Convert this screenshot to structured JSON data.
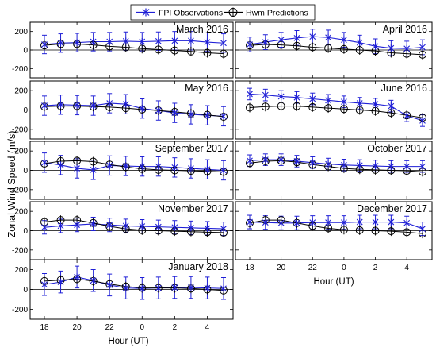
{
  "figure": {
    "ylabel": "Zonal Wind Speed (m/s)",
    "xlabel": "Hour (UT)",
    "legend": {
      "obs_label": "FPI Observations",
      "pred_label": "Hwm Predictions",
      "placement": "top-center"
    },
    "colors": {
      "observations": "#1f1fd6",
      "predictions": "#000000"
    }
  },
  "chart_data": [
    {
      "type": "line",
      "title": "March 2016",
      "x": [
        18,
        19,
        20,
        21,
        22,
        23,
        0,
        1,
        2,
        3,
        4,
        5
      ],
      "xticks": [
        "18",
        "20",
        "22",
        "0",
        "2",
        "4"
      ],
      "ylim": [
        -300,
        300
      ],
      "yticks": [
        -200,
        0,
        200
      ],
      "grid": false,
      "series": [
        {
          "name": "FPI Observations",
          "values": [
            60,
            75,
            80,
            90,
            90,
            95,
            90,
            95,
            100,
            100,
            85,
            75
          ],
          "error": [
            100,
            100,
            100,
            100,
            100,
            100,
            100,
            100,
            100,
            100,
            100,
            100
          ]
        },
        {
          "name": "Hwm Predictions",
          "values": [
            50,
            65,
            65,
            55,
            40,
            30,
            15,
            5,
            -5,
            -15,
            -30,
            -40
          ]
        }
      ]
    },
    {
      "type": "line",
      "title": "April 2016",
      "x": [
        18,
        19,
        20,
        21,
        22,
        23,
        0,
        1,
        2,
        3,
        4,
        5
      ],
      "xticks": [
        "18",
        "20",
        "22",
        "0",
        "2",
        "4"
      ],
      "ylim": [
        -300,
        300
      ],
      "yticks": [
        -200,
        0,
        200
      ],
      "grid": false,
      "series": [
        {
          "name": "FPI Observations",
          "values": [
            60,
            85,
            110,
            130,
            145,
            135,
            110,
            80,
            40,
            20,
            15,
            30
          ],
          "error": [
            80,
            80,
            80,
            80,
            80,
            80,
            80,
            80,
            80,
            80,
            80,
            80
          ]
        },
        {
          "name": "Hwm Predictions",
          "values": [
            50,
            60,
            55,
            45,
            30,
            20,
            10,
            0,
            -10,
            -30,
            -40,
            -50
          ]
        }
      ]
    },
    {
      "type": "line",
      "title": "May 2016",
      "x": [
        18,
        19,
        20,
        21,
        22,
        23,
        0,
        1,
        2,
        3,
        4,
        5
      ],
      "xticks": [
        "18",
        "20",
        "22",
        "0",
        "2",
        "4"
      ],
      "ylim": [
        -300,
        300
      ],
      "yticks": [
        -200,
        0,
        200
      ],
      "grid": false,
      "series": [
        {
          "name": "FPI Observations",
          "values": [
            45,
            55,
            50,
            45,
            70,
            60,
            15,
            -5,
            -30,
            -45,
            -55,
            -65
          ],
          "error": [
            100,
            100,
            100,
            100,
            100,
            100,
            100,
            100,
            100,
            100,
            100,
            100
          ]
        },
        {
          "name": "Hwm Predictions",
          "values": [
            35,
            40,
            40,
            35,
            30,
            20,
            5,
            -5,
            -20,
            -35,
            -50,
            -70
          ]
        }
      ]
    },
    {
      "type": "line",
      "title": "June 2016",
      "x": [
        18,
        19,
        20,
        21,
        22,
        23,
        0,
        1,
        2,
        3,
        4,
        5
      ],
      "xticks": [
        "18",
        "20",
        "22",
        "0",
        "2",
        "4"
      ],
      "ylim": [
        -300,
        300
      ],
      "yticks": [
        -200,
        0,
        200
      ],
      "grid": false,
      "series": [
        {
          "name": "FPI Observations",
          "values": [
            165,
            155,
            140,
            130,
            115,
            100,
            85,
            70,
            60,
            40,
            -60,
            -110
          ],
          "error": [
            60,
            60,
            60,
            60,
            60,
            60,
            60,
            60,
            60,
            60,
            60,
            60
          ]
        },
        {
          "name": "Hwm Predictions",
          "values": [
            25,
            35,
            40,
            40,
            30,
            20,
            10,
            0,
            -10,
            -30,
            -55,
            -80
          ]
        }
      ]
    },
    {
      "type": "line",
      "title": "September 2017",
      "x": [
        18,
        19,
        20,
        21,
        22,
        23,
        0,
        1,
        2,
        3,
        4,
        5
      ],
      "xticks": [
        "18",
        "20",
        "22",
        "0",
        "2",
        "4"
      ],
      "ylim": [
        -300,
        300
      ],
      "yticks": [
        -200,
        0,
        200
      ],
      "grid": false,
      "series": [
        {
          "name": "FPI Observations",
          "values": [
            80,
            55,
            20,
            5,
            50,
            45,
            40,
            40,
            30,
            20,
            10,
            0
          ],
          "error": [
            100,
            100,
            100,
            100,
            100,
            100,
            100,
            100,
            100,
            100,
            100,
            100
          ]
        },
        {
          "name": "Hwm Predictions",
          "values": [
            70,
            95,
            100,
            90,
            60,
            35,
            15,
            5,
            0,
            -5,
            -10,
            -15
          ]
        }
      ]
    },
    {
      "type": "line",
      "title": "October 2017",
      "x": [
        18,
        19,
        20,
        21,
        22,
        23,
        0,
        1,
        2,
        3,
        4,
        5
      ],
      "xticks": [
        "18",
        "20",
        "22",
        "0",
        "2",
        "4"
      ],
      "ylim": [
        -300,
        300
      ],
      "yticks": [
        -200,
        0,
        200
      ],
      "grid": false,
      "series": [
        {
          "name": "FPI Observations",
          "values": [
            100,
            110,
            110,
            95,
            80,
            65,
            55,
            50,
            45,
            40,
            40,
            40
          ],
          "error": [
            60,
            60,
            60,
            60,
            60,
            60,
            60,
            60,
            60,
            60,
            60,
            60
          ]
        },
        {
          "name": "Hwm Predictions",
          "values": [
            75,
            95,
            100,
            85,
            60,
            40,
            20,
            10,
            5,
            0,
            -5,
            -15
          ]
        }
      ]
    },
    {
      "type": "line",
      "title": "November 2017",
      "x": [
        18,
        19,
        20,
        21,
        22,
        23,
        0,
        1,
        2,
        3,
        4,
        5
      ],
      "xticks": [
        "18",
        "20",
        "22",
        "0",
        "2",
        "4"
      ],
      "ylim": [
        -300,
        300
      ],
      "yticks": [
        -200,
        0,
        200
      ],
      "grid": false,
      "series": [
        {
          "name": "FPI Observations",
          "values": [
            35,
            50,
            60,
            70,
            60,
            50,
            45,
            40,
            35,
            30,
            25,
            20
          ],
          "error": [
            70,
            70,
            70,
            70,
            70,
            70,
            70,
            70,
            70,
            70,
            70,
            70
          ]
        },
        {
          "name": "Hwm Predictions",
          "values": [
            90,
            110,
            110,
            80,
            45,
            20,
            5,
            0,
            -5,
            -10,
            -15,
            -20
          ]
        }
      ]
    },
    {
      "type": "line",
      "title": "December 2017",
      "x": [
        18,
        19,
        20,
        21,
        22,
        23,
        0,
        1,
        2,
        3,
        4,
        5
      ],
      "xticks": [
        "18",
        "20",
        "22",
        "0",
        "2",
        "4"
      ],
      "ylim": [
        -300,
        300
      ],
      "yticks": [
        -200,
        0,
        200
      ],
      "grid": false,
      "series": [
        {
          "name": "FPI Observations",
          "values": [
            90,
            85,
            80,
            80,
            85,
            85,
            85,
            90,
            90,
            90,
            80,
            20
          ],
          "error": [
            70,
            70,
            70,
            70,
            70,
            70,
            70,
            70,
            70,
            70,
            70,
            70
          ]
        },
        {
          "name": "Hwm Predictions",
          "values": [
            80,
            110,
            110,
            80,
            50,
            25,
            10,
            5,
            0,
            -5,
            -15,
            -30
          ]
        }
      ]
    },
    {
      "type": "line",
      "title": "January 2018",
      "x": [
        18,
        19,
        20,
        21,
        22,
        23,
        0,
        1,
        2,
        3,
        4,
        5
      ],
      "xticks": [
        "18",
        "20",
        "22",
        "0",
        "2",
        "4"
      ],
      "ylim": [
        -300,
        300
      ],
      "yticks": [
        -200,
        0,
        200
      ],
      "grid": false,
      "series": [
        {
          "name": "FPI Observations",
          "values": [
            50,
            75,
            125,
            90,
            45,
            15,
            10,
            15,
            20,
            20,
            15,
            10
          ],
          "error": [
            110,
            110,
            110,
            110,
            110,
            110,
            110,
            110,
            110,
            110,
            110,
            110
          ]
        },
        {
          "name": "Hwm Predictions",
          "values": [
            85,
            95,
            105,
            85,
            55,
            30,
            15,
            15,
            15,
            10,
            0,
            -10
          ]
        }
      ]
    }
  ]
}
